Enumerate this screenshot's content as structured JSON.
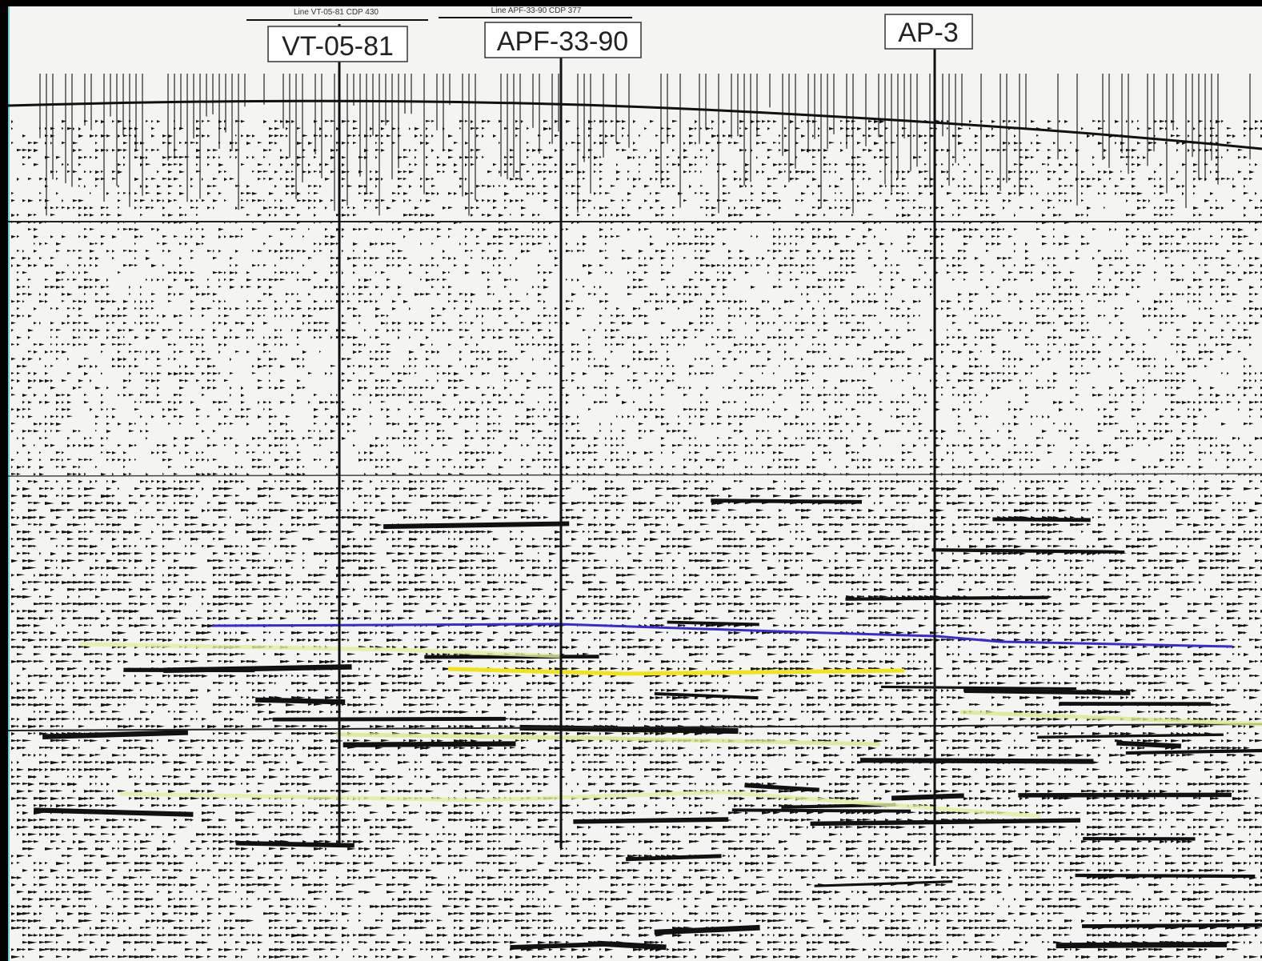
{
  "wells": [
    {
      "label": "VT-05-81"
    },
    {
      "label": "APF-33-90"
    },
    {
      "label": "AP-3"
    }
  ],
  "line_headers": [
    "Line VT-05-81 CDP 430",
    "Line APF-33-90 CDP 377"
  ]
}
